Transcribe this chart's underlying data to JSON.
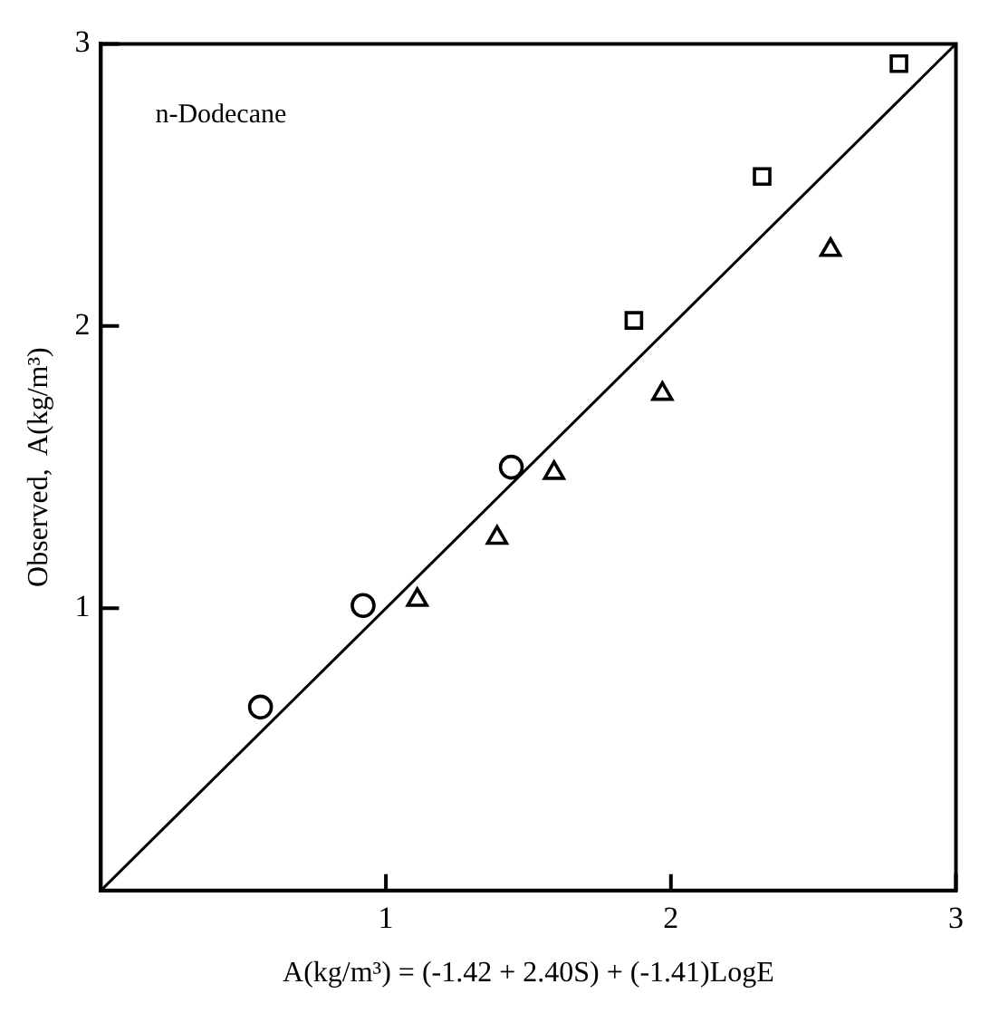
{
  "chart_data": {
    "type": "scatter",
    "xlabel": "A(kg/m³) = (-1.42 + 2.40S) + (-1.41)LogE",
    "ylabel": "Observed,  A(kg/m³)",
    "annotations": [
      "n-Dodecane"
    ],
    "xlim": [
      0,
      3
    ],
    "ylim": [
      0,
      3
    ],
    "xticks": [
      1,
      2,
      3
    ],
    "yticks": [
      1,
      2,
      3
    ],
    "grid": false,
    "legend": false,
    "series": [
      {
        "type": "scatter",
        "marker": "circle",
        "color": "#000000",
        "x": [
          0.56,
          0.92,
          1.44
        ],
        "values": [
          0.65,
          1.01,
          1.5
        ]
      },
      {
        "type": "scatter",
        "marker": "triangle",
        "color": "#000000",
        "x": [
          1.11,
          1.39,
          1.59,
          1.97,
          2.56
        ],
        "values": [
          1.03,
          1.25,
          1.48,
          1.76,
          2.27
        ]
      },
      {
        "type": "scatter",
        "marker": "square",
        "color": "#000000",
        "x": [
          1.87,
          2.32,
          2.8
        ],
        "values": [
          2.02,
          2.53,
          2.93
        ]
      },
      {
        "type": "line",
        "marker": "none",
        "line_style": "solid",
        "color": "#000000",
        "x": [
          0,
          3
        ],
        "values": [
          0,
          3
        ]
      }
    ]
  }
}
